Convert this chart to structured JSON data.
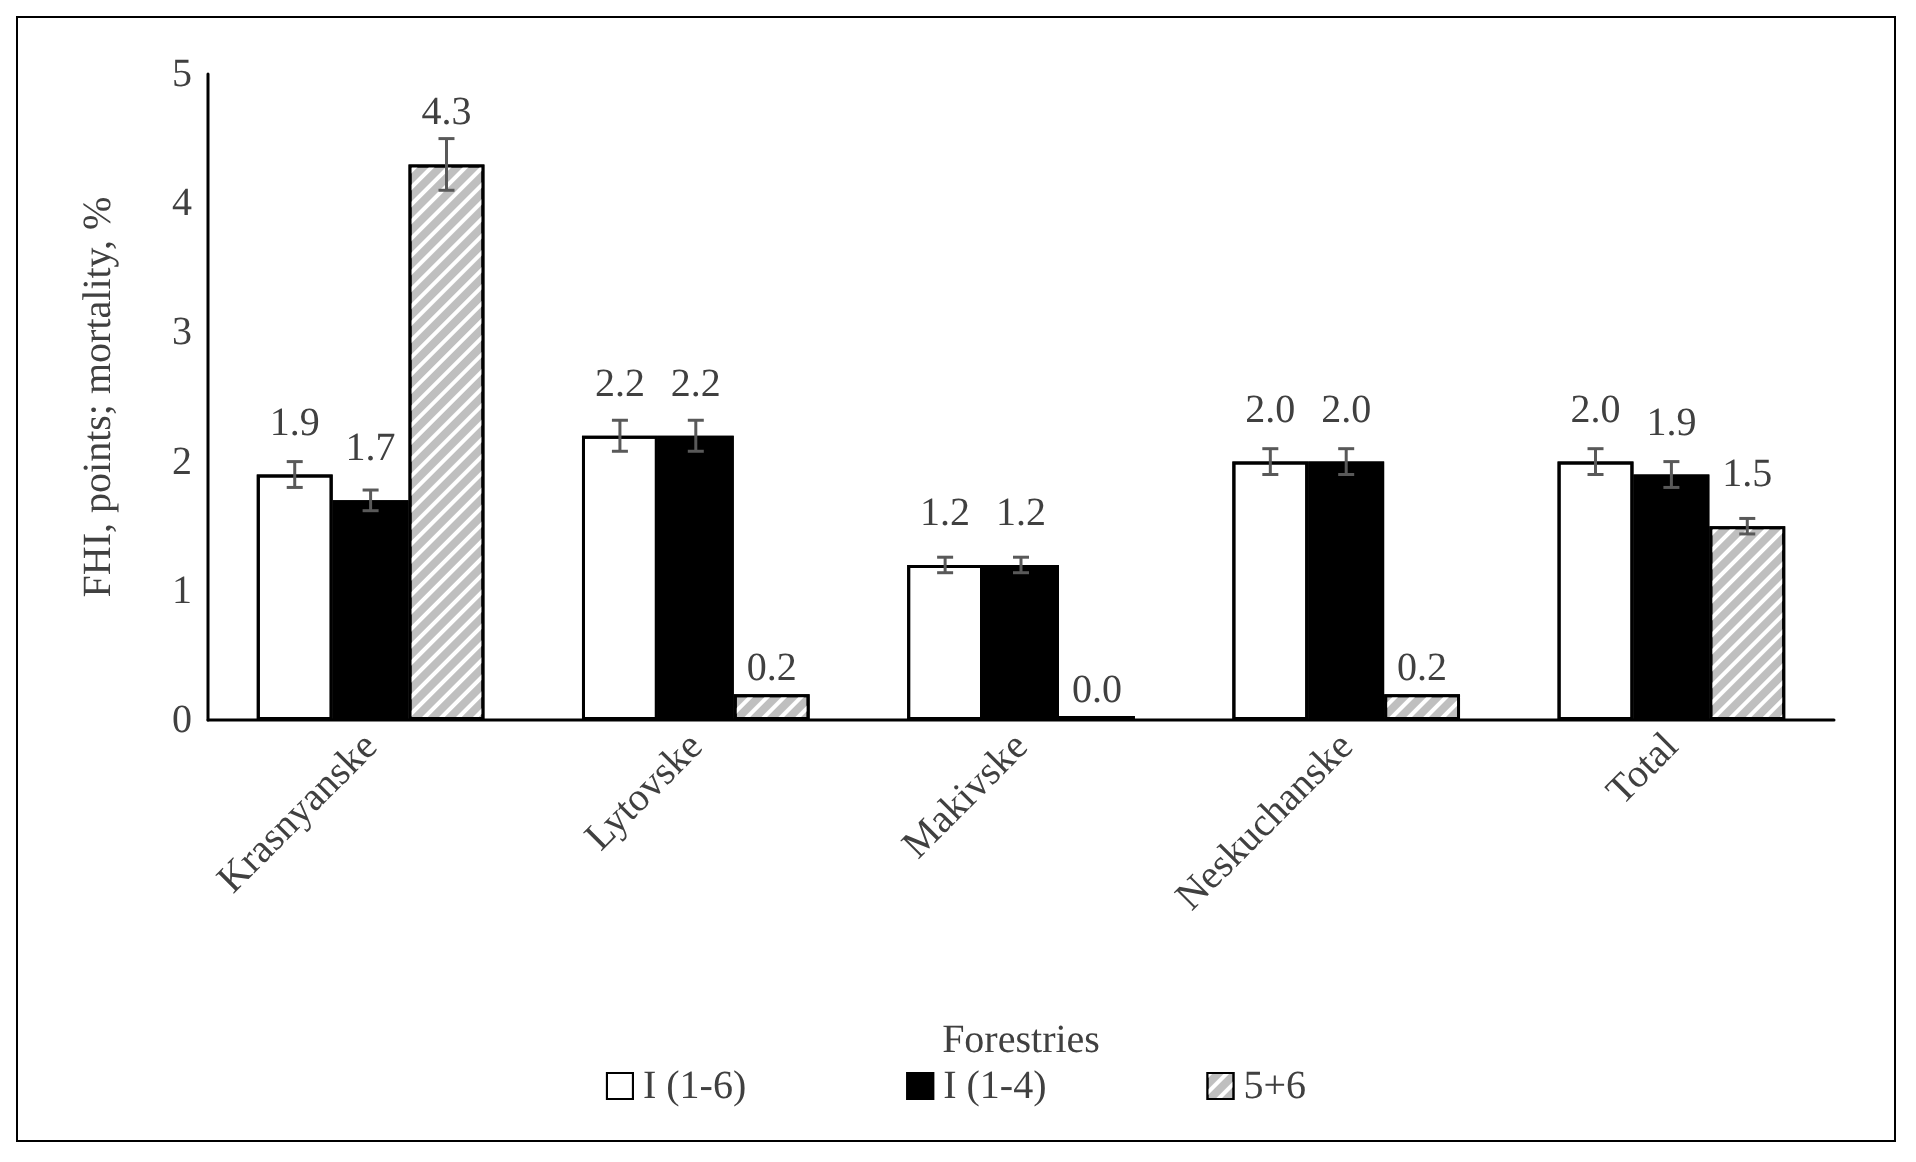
{
  "chart_data": {
    "type": "bar",
    "xlabel": "Forestries",
    "ylabel": "FHI, points; mortality, %",
    "categories": [
      "Krasnyanske",
      "Lytovske",
      "Makivske",
      "Neskuchanske",
      "Total"
    ],
    "series": [
      {
        "name": "I (1-6)",
        "color": "#ffffff",
        "values": [
          1.9,
          2.2,
          1.2,
          2.0,
          2.0
        ],
        "value_labels": [
          "1.9",
          "2.2",
          "1.2",
          "2.0",
          "2.0"
        ],
        "errors": [
          0.1,
          0.12,
          0.06,
          0.1,
          0.1
        ]
      },
      {
        "name": "I (1-4)",
        "color": "#000000",
        "values": [
          1.7,
          2.2,
          1.2,
          2.0,
          1.9
        ],
        "value_labels": [
          "1.7",
          "2.2",
          "1.2",
          "2.0",
          "1.9"
        ],
        "errors": [
          0.08,
          0.12,
          0.06,
          0.1,
          0.1
        ]
      },
      {
        "name": "5+6",
        "color": "#bfbfbf",
        "values": [
          4.3,
          0.2,
          0.0,
          0.2,
          1.5
        ],
        "value_labels": [
          "4.3",
          "0.2",
          "0.0",
          "0.2",
          "1.5"
        ],
        "errors": [
          0.2,
          null,
          null,
          null,
          0.06
        ]
      }
    ],
    "ylim": [
      0,
      5
    ],
    "yticks": [
      0,
      1,
      2,
      3,
      4,
      5
    ],
    "grid": false,
    "legend": "bottom"
  }
}
